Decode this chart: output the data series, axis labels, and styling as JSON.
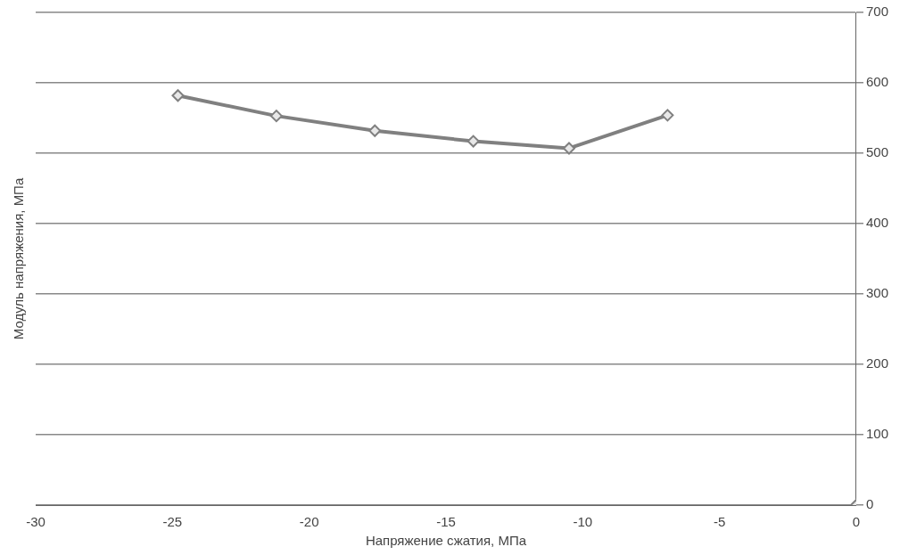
{
  "chart_data": {
    "type": "line",
    "xlabel": "Напряжение сжатия, МПа",
    "ylabel": "Модуль напряжения, МПа",
    "xlim": [
      -30,
      0
    ],
    "xticks": [
      -30,
      -25,
      -20,
      -15,
      -10,
      -5,
      0
    ],
    "ylim": [
      0,
      700
    ],
    "yticks": [
      0,
      100,
      200,
      300,
      400,
      500,
      600,
      700
    ],
    "grid": "y",
    "legend": false,
    "marker": "diamond",
    "line_style": "solid",
    "series": [
      {
        "color": "#808080",
        "x": [
          -24.8,
          -21.2,
          -17.6,
          -14.0,
          -10.5,
          -6.9
        ],
        "values": [
          582,
          553,
          532,
          517,
          507,
          554
        ]
      },
      {
        "type": "scatter",
        "color": "#808080",
        "x": [
          0
        ],
        "values": [
          0
        ]
      }
    ]
  }
}
